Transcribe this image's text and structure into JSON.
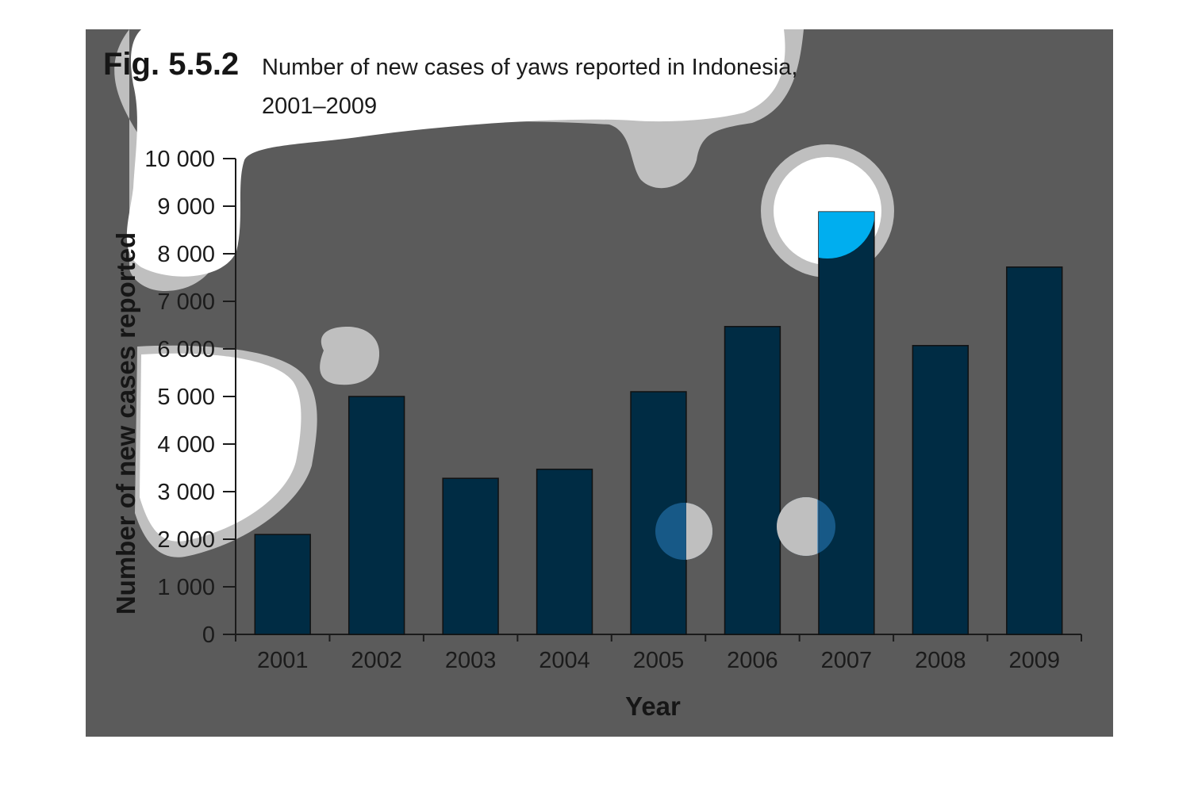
{
  "figure": {
    "label": "Fig. 5.5.2",
    "title_line1": "Number of new cases of yaws reported in Indonesia,",
    "title_line2": "2001–2009"
  },
  "chart_data": {
    "type": "bar",
    "title": "Number of new cases of yaws reported in Indonesia, 2001–2009",
    "xlabel": "Year",
    "ylabel": "Number of new cases reported",
    "categories": [
      "2001",
      "2002",
      "2003",
      "2004",
      "2005",
      "2006",
      "2007",
      "2008",
      "2009"
    ],
    "values": [
      2100,
      5000,
      3280,
      3470,
      5100,
      6470,
      8880,
      6070,
      7720
    ],
    "ylim": [
      0,
      10000
    ],
    "yticks": [
      0,
      1000,
      2000,
      3000,
      4000,
      5000,
      6000,
      7000,
      8000,
      9000,
      10000
    ],
    "ytick_labels": [
      "0",
      "1 000",
      "2 000",
      "3 000",
      "4 000",
      "5 000",
      "6 000",
      "7 000",
      "8 000",
      "9 000",
      "10 000"
    ],
    "grid": false,
    "legend": "none",
    "colors": {
      "background": "#5b5b5b",
      "bar": "#002c44",
      "label_accent": "#00aeef",
      "text": "#1b1b1b"
    }
  }
}
